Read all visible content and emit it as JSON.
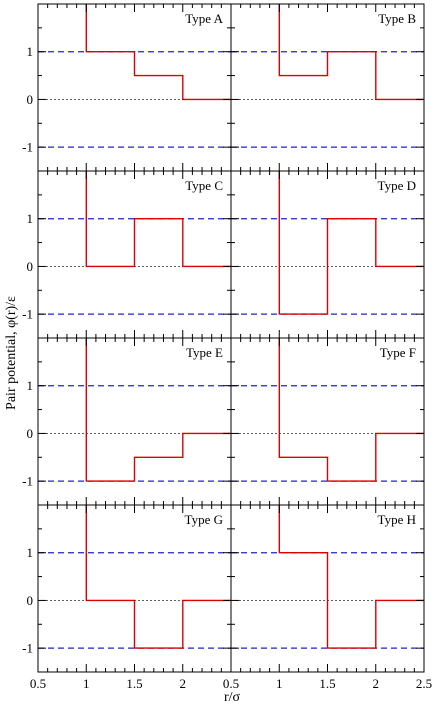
{
  "chart_data": {
    "type": "line",
    "layout": "grid 4 rows x 2 columns",
    "xlabel": "r/σ",
    "ylabel": "Pair potential, φ(r)/ε",
    "xlim": [
      0.5,
      2.5
    ],
    "ylim": [
      -1.5,
      2.0
    ],
    "xticks": [
      0.5,
      1,
      1.5,
      2,
      2.5
    ],
    "xtick_labels": [
      "0.5",
      "1",
      "1.5",
      "2",
      "0.5",
      "1",
      "1.5",
      "2",
      "2.5"
    ],
    "yticks": [
      -1,
      0,
      1
    ],
    "ytick_labels": [
      "1",
      "0",
      "-1"
    ],
    "reference_lines": [
      {
        "y": 1,
        "style": "dashed",
        "color": "#2222cc"
      },
      {
        "y": 0,
        "style": "dotted",
        "color": "#000000"
      },
      {
        "y": -1,
        "style": "dashed",
        "color": "#2222cc"
      }
    ],
    "series_color": "#dd0000",
    "panels": [
      {
        "title": "Type A",
        "steps": [
          [
            1.0,
            1.5,
            1.0
          ],
          [
            1.5,
            2.0,
            0.5
          ],
          [
            2.0,
            2.5,
            0.0
          ]
        ]
      },
      {
        "title": "Type B",
        "steps": [
          [
            1.0,
            1.5,
            0.5
          ],
          [
            1.5,
            2.0,
            1.0
          ],
          [
            2.0,
            2.5,
            0.0
          ]
        ]
      },
      {
        "title": "Type C",
        "steps": [
          [
            1.0,
            1.5,
            0.0
          ],
          [
            1.5,
            2.0,
            1.0
          ],
          [
            2.0,
            2.5,
            0.0
          ]
        ]
      },
      {
        "title": "Type D",
        "steps": [
          [
            1.0,
            1.5,
            -1.0
          ],
          [
            1.5,
            2.0,
            1.0
          ],
          [
            2.0,
            2.5,
            0.0
          ]
        ]
      },
      {
        "title": "Type E",
        "steps": [
          [
            1.0,
            1.5,
            -1.0
          ],
          [
            1.5,
            2.0,
            -0.5
          ],
          [
            2.0,
            2.5,
            0.0
          ]
        ]
      },
      {
        "title": "Type F",
        "steps": [
          [
            1.0,
            1.5,
            -0.5
          ],
          [
            1.5,
            2.0,
            -1.0
          ],
          [
            2.0,
            2.5,
            0.0
          ]
        ]
      },
      {
        "title": "Type G",
        "steps": [
          [
            1.0,
            1.5,
            0.0
          ],
          [
            1.5,
            2.0,
            -1.0
          ],
          [
            2.0,
            2.5,
            0.0
          ]
        ]
      },
      {
        "title": "Type H",
        "steps": [
          [
            1.0,
            1.5,
            1.0
          ],
          [
            1.5,
            2.0,
            -1.0
          ],
          [
            2.0,
            2.5,
            0.0
          ]
        ]
      }
    ]
  }
}
